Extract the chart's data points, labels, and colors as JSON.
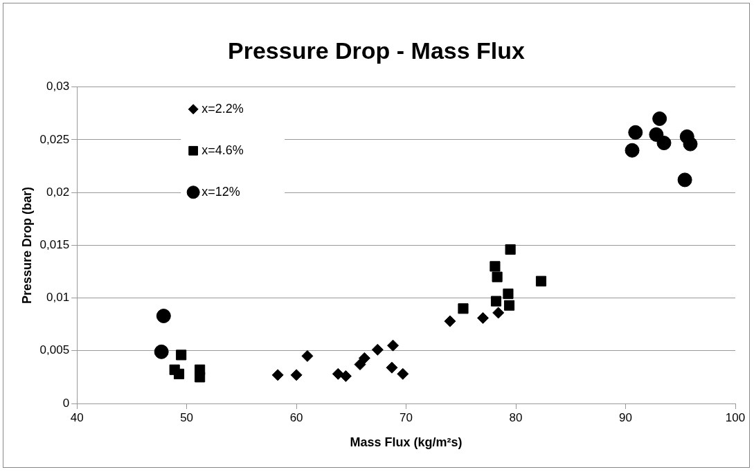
{
  "chart_data": {
    "type": "scatter",
    "title": "Pressure Drop - Mass Flux",
    "xlabel": "Mass Flux (kg/m²s)",
    "ylabel": "Pressure Drop (bar)",
    "xlim": [
      40,
      100
    ],
    "xticks": [
      40,
      50,
      60,
      70,
      80,
      90,
      100
    ],
    "ylim": [
      0,
      0.03
    ],
    "yticks": [
      0,
      {
        "value": 0.005,
        "label": "0,005"
      },
      {
        "value": 0.01,
        "label": "0,01"
      },
      {
        "value": 0.015,
        "label": "0,015"
      },
      {
        "value": 0.02,
        "label": "0,02"
      },
      {
        "value": 0.025,
        "label": "0,025"
      },
      {
        "value": 0.03,
        "label": "0,03"
      }
    ],
    "grid": "y",
    "legend": "top left",
    "series": [
      {
        "name": "x=2.2%",
        "color": "#000000",
        "marker": "diamond",
        "x": [
          58.3,
          60.0,
          61.0,
          63.8,
          64.5,
          65.8,
          66.2,
          67.4,
          68.8,
          68.7,
          69.7,
          74.0,
          77.0,
          78.4
        ],
        "values": [
          0.0027,
          0.0027,
          0.0045,
          0.0028,
          0.0026,
          0.0037,
          0.0043,
          0.0051,
          0.0055,
          0.0034,
          0.0028,
          0.0078,
          0.0081,
          0.0086
        ]
      },
      {
        "name": "x=4.6%",
        "color": "#000000",
        "marker": "square",
        "x": [
          49.5,
          48.9,
          49.3,
          51.2,
          51.2,
          75.2,
          78.3,
          78.1,
          79.5,
          79.3,
          79.4,
          82.3,
          78.2
        ],
        "values": [
          0.0046,
          0.0032,
          0.0028,
          0.0032,
          0.0025,
          0.009,
          0.012,
          0.013,
          0.0146,
          0.0104,
          0.0093,
          0.0116,
          0.0097
        ]
      },
      {
        "name": "x=12%",
        "color": "#000000",
        "marker": "circle",
        "x": [
          47.9,
          47.7,
          93.1,
          90.9,
          90.6,
          92.8,
          93.5,
          95.6,
          95.9,
          95.4
        ],
        "values": [
          0.0083,
          0.0049,
          0.027,
          0.0257,
          0.024,
          0.0255,
          0.0247,
          0.0253,
          0.0246,
          0.0212
        ]
      }
    ]
  }
}
